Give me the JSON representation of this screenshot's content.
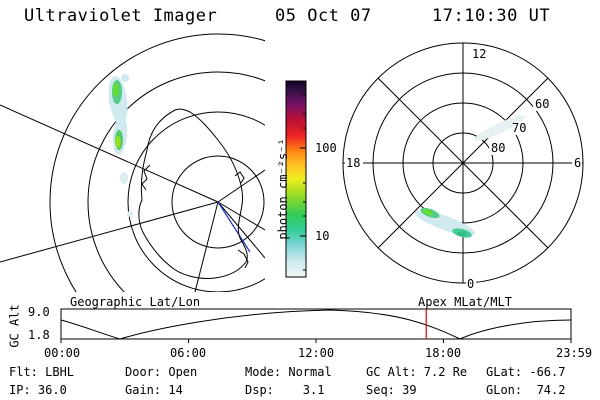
{
  "header": {
    "title": "Ultraviolet Imager",
    "date": "05 Oct 07",
    "time": "17:10:30 UT"
  },
  "colorbar": {
    "unit_label": "photon cm⁻²s⁻¹",
    "ticks": [
      "100",
      "10"
    ]
  },
  "geo_panel": {
    "caption": "Geographic Lat/Lon"
  },
  "mlt_panel": {
    "caption": "Apex MLat/MLT",
    "hour_labels": {
      "top": "12",
      "left": "18",
      "right": "6",
      "bottom": "0"
    },
    "lat_labels": [
      "60",
      "70",
      "80"
    ]
  },
  "timeline": {
    "ylabel": "GC Alt",
    "y_ticks": [
      "9.0",
      "1.8"
    ],
    "x_ticks": [
      "00:00",
      "06:00",
      "12:00",
      "18:00",
      "23:59"
    ],
    "current_time_marker": "17:10:30",
    "marker_color": "#e00000"
  },
  "info": {
    "row1": {
      "flt": "Flt: LBHL",
      "door": "Door: Open",
      "mode": "Mode: Normal",
      "gcalt": "GC Alt: 7.2 Re",
      "glat": "GLat: -66.7"
    },
    "row2": {
      "ip": "IP: 36.0",
      "gain": "Gain: 14",
      "dsp": "Dsp:    3.1",
      "seq": "Seq: 39",
      "glon": "GLon:  74.2"
    }
  }
}
